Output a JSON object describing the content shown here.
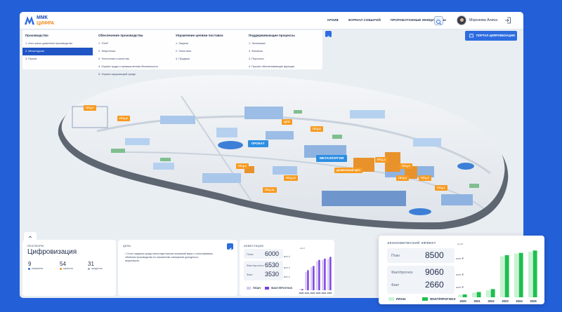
{
  "header": {
    "logo_line1": "ММК",
    "logo_line2": "ЦИФРА",
    "nav": [
      "АРХИВ",
      "ЖУРНАЛ СОБЫТИЙ",
      "ПРОРАБОТАННЫЕ ИНИЦИАТИВЫ"
    ],
    "user_name": "Морозова Алиса"
  },
  "menu": {
    "columns": [
      {
        "title": "Производство",
        "items": [
          "1. Агло-коксо-доменное производство",
          "2. Металлургия",
          "3. Прокат"
        ],
        "active_index": 1
      },
      {
        "title": "Обеспечение производства",
        "items": [
          "1. ТОиР",
          "2. Энергетика",
          "3. Технология и качество",
          "4. Охрана труда и промышленная безопасность",
          "5. Охрана окружающей среды"
        ]
      },
      {
        "title": "Управление цепями поставок",
        "items": [
          "1. Закупки",
          "2. Логистика",
          "3. Продажи"
        ]
      },
      {
        "title": "Поддерживающие процессы",
        "items": [
          "1. Экономика",
          "2. Финансы",
          "3. Персонал",
          "4. Прочие обеспечивающие функции"
        ]
      }
    ],
    "portal_button": "ПОРТАЛ ЦИФРОВИЗАЦИИ"
  },
  "map": {
    "labels_orange": [
      "ПГЦ-7",
      "ПГЦ-8",
      "ПГЦ-5",
      "ЦПП",
      "ПГЦ-3",
      "ПГЦ-4",
      "ПГЦ-2",
      "ПГЦ-10",
      "ПГЦ-11",
      "ПГЦ-1",
      "ПГЦ-6",
      "ПГЦ-9",
      "ДОМЕННЫЙ ЦЕХ"
    ],
    "labels_blue": [
      "ПРОКАТ",
      "МЕТАЛЛУРГИЯ"
    ]
  },
  "digitalization": {
    "caption": "ПЛАТФОРМ",
    "title": "Цифровизация",
    "stats": [
      {
        "value": "9",
        "label": "инициатив",
        "color": "#2d6ce0"
      },
      {
        "value": "54",
        "label": "проектов",
        "color": "#f28c1f"
      },
      {
        "value": "31",
        "label": "продуктов",
        "color": "#9aa6b8"
      }
    ]
  },
  "goal": {
    "caption": "ЦЕЛЬ",
    "text": "Стать лидером среди металлургических компаний мира с сопоставимым объёмом производства по показателю совокупная доходность акционеров."
  },
  "investments": {
    "caption": "ИНВЕСТИЦИИ",
    "rows": [
      {
        "label": "План",
        "value": "6000",
        "unit": "млн ₽"
      },
      {
        "label": "Факт/прогноз",
        "value": "6530",
        "unit": "млн ₽"
      },
      {
        "label": "Факт",
        "value": "3530",
        "unit": "млн ₽"
      }
    ],
    "legend_plan": "ПЛАН",
    "legend_fact": "ФАКТ/ПРОГНОЗ",
    "axis_unit": "млн ₽",
    "colors": {
      "plan": "#d6c8f2",
      "fact": "#7a3fe0"
    }
  },
  "economic_effect": {
    "caption": "ЭКОНОМИЧЕСКИЙ ЭФФЕКТ",
    "rows": [
      {
        "label": "План",
        "value": "8500",
        "unit": "млн ₽"
      },
      {
        "label": "Факт/прогноз",
        "value": "9060",
        "unit": "млн ₽"
      },
      {
        "label": "Факт",
        "value": "2660",
        "unit": "млн ₽"
      }
    ],
    "legend_plan": "ПЛАН",
    "legend_fact": "ФАКТ/ПРОГНОЗ",
    "axis_unit": "млн ₽",
    "colors": {
      "plan": "#c9f2d4",
      "fact": "#1fbf4f"
    }
  },
  "chart_data": [
    {
      "type": "bar",
      "categories": [
        "2020",
        "2021",
        "2022",
        "2023",
        "2024",
        "2025"
      ],
      "series": [
        {
          "name": "ПЛАН",
          "values": [
            2,
            30,
            38,
            48,
            50,
            52
          ]
        },
        {
          "name": "ФАКТ/ПРОГНОЗ",
          "values": [
            2,
            33,
            40,
            50,
            52,
            55
          ]
        }
      ]
    },
    {
      "type": "bar",
      "categories": [
        "2020",
        "2021",
        "2022",
        "2023",
        "2024",
        "2025"
      ],
      "series": [
        {
          "name": "ПЛАН",
          "values": [
            4,
            8,
            12,
            70,
            75,
            78
          ]
        },
        {
          "name": "ФАКТ/ПРОГНОЗ",
          "values": [
            5,
            9,
            14,
            72,
            76,
            80
          ]
        }
      ]
    }
  ]
}
